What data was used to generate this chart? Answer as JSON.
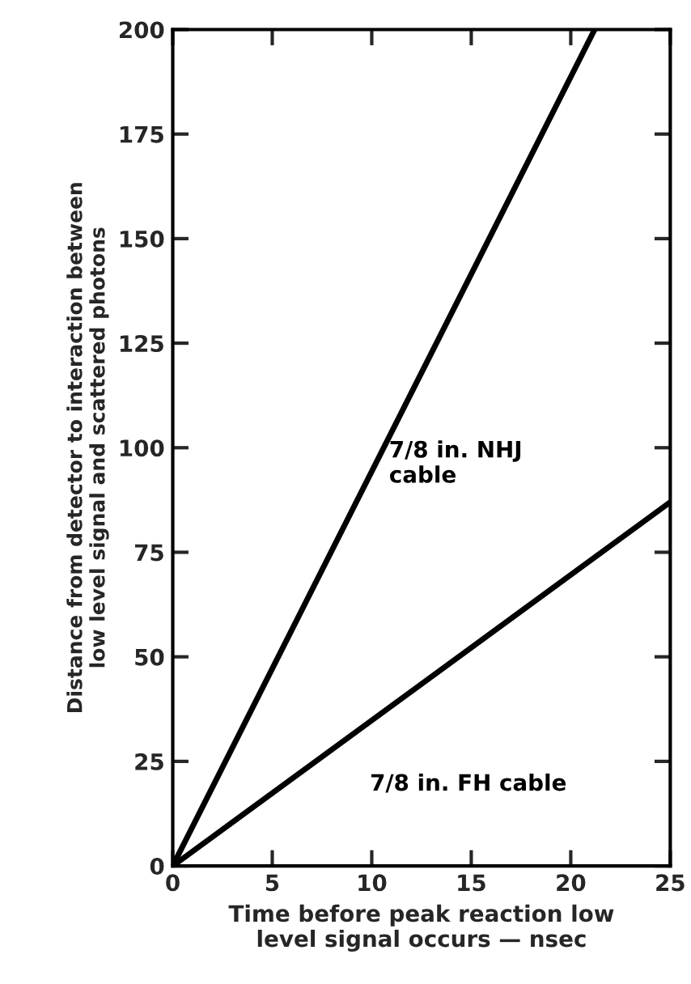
{
  "chart_data": {
    "type": "line",
    "xlabel": "Time before peak reaction low\nlevel signal occurs — nsec",
    "ylabel": "Distance from detector to interaction between\nlow level signal and scattered photons",
    "series": [
      {
        "name": "7/8 in. NHJ\ncable",
        "x": [
          0,
          21.2
        ],
        "values": [
          0,
          200
        ],
        "color": "#000000"
      },
      {
        "name": "7/8 in. FH cable",
        "x": [
          0,
          25
        ],
        "values": [
          0,
          87
        ],
        "color": "#000000"
      }
    ],
    "xlim": [
      0,
      25
    ],
    "xticks": [
      0,
      5,
      10,
      15,
      20,
      25
    ],
    "ylim": [
      0,
      200
    ],
    "yticks": [
      0,
      25,
      50,
      75,
      100,
      125,
      150,
      175,
      200
    ],
    "grid": false,
    "legend": false,
    "marker": "none",
    "line_style": "solid"
  }
}
